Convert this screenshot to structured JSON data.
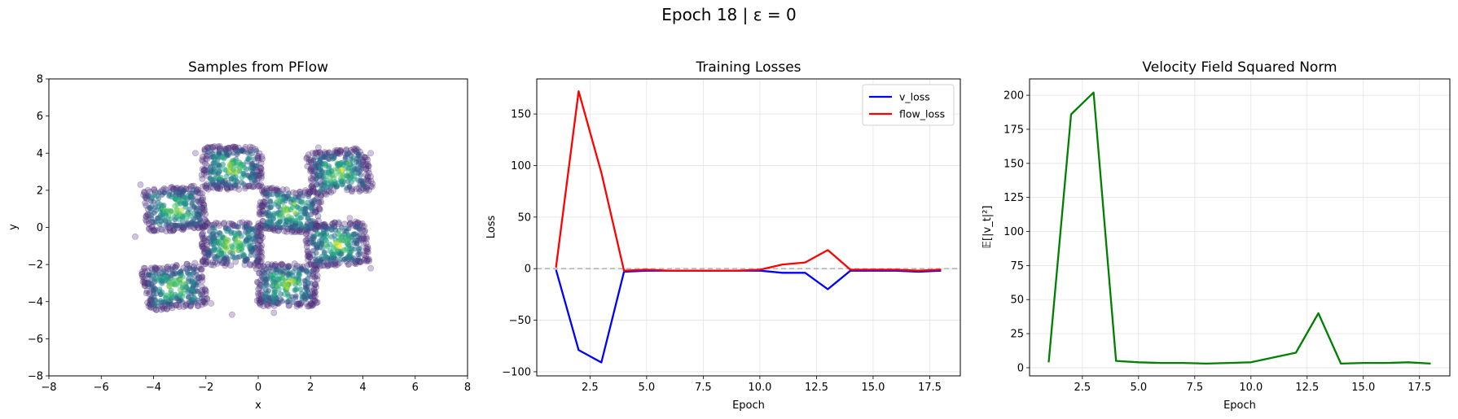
{
  "suptitle": "Epoch 18 | ε = 0",
  "chart_data": [
    {
      "type": "scatter",
      "title": "Samples from PFlow",
      "xlabel": "x",
      "ylabel": "y",
      "xlim": [
        -8,
        8
      ],
      "ylim": [
        -8,
        8
      ],
      "xticks": [
        -8,
        -6,
        -4,
        -2,
        0,
        2,
        4,
        6,
        8
      ],
      "yticks": [
        -8,
        -6,
        -4,
        -2,
        0,
        2,
        4,
        6,
        8
      ],
      "grid": false,
      "colormap": "viridis",
      "clusters": [
        {
          "center": [
            -3.2,
            1.0
          ],
          "half_width": [
            1.0,
            1.0
          ],
          "rotation_deg": 8
        },
        {
          "center": [
            -1.0,
            3.2
          ],
          "half_width": [
            1.0,
            1.0
          ],
          "rotation_deg": 0
        },
        {
          "center": [
            1.2,
            0.9
          ],
          "half_width": [
            1.0,
            1.0
          ],
          "rotation_deg": -5
        },
        {
          "center": [
            3.1,
            3.0
          ],
          "half_width": [
            1.0,
            1.0
          ],
          "rotation_deg": 8
        },
        {
          "center": [
            -1.0,
            -0.9
          ],
          "half_width": [
            1.0,
            1.0
          ],
          "rotation_deg": 0
        },
        {
          "center": [
            3.0,
            -0.9
          ],
          "half_width": [
            1.0,
            1.0
          ],
          "rotation_deg": 5
        },
        {
          "center": [
            -3.2,
            -3.2
          ],
          "half_width": [
            1.0,
            1.0
          ],
          "rotation_deg": 8
        },
        {
          "center": [
            1.1,
            -3.1
          ],
          "half_width": [
            1.0,
            1.0
          ],
          "rotation_deg": 0
        }
      ],
      "outliers": [
        [
          -4.7,
          -0.5
        ],
        [
          -1.8,
          -4.1
        ],
        [
          -1.0,
          -4.7
        ],
        [
          0.6,
          -4.6
        ],
        [
          3.5,
          0.5
        ],
        [
          4.3,
          -2.2
        ],
        [
          -4.5,
          2.3
        ],
        [
          2.3,
          4.3
        ],
        [
          -2.4,
          4.0
        ],
        [
          4.3,
          4.0
        ]
      ]
    },
    {
      "type": "line",
      "title": "Training Losses",
      "xlabel": "Epoch",
      "ylabel": "Loss",
      "xlim": [
        0.15,
        18.85
      ],
      "ylim": [
        -104,
        184
      ],
      "xticks": [
        2.5,
        5.0,
        7.5,
        10.0,
        12.5,
        15.0,
        17.5
      ],
      "yticks": [
        -100,
        -50,
        0,
        50,
        100,
        150
      ],
      "grid": true,
      "hline": 0,
      "legend_position": "top-right",
      "x": [
        1,
        2,
        3,
        4,
        5,
        6,
        7,
        8,
        9,
        10,
        11,
        12,
        13,
        14,
        15,
        16,
        17,
        18
      ],
      "series": [
        {
          "name": "v_loss",
          "color": "#0000ff",
          "values": [
            -1,
            -79,
            -91,
            -3,
            -2,
            -2,
            -2,
            -2,
            -2,
            -2,
            -4,
            -4,
            -20,
            -2,
            -2,
            -2,
            -3,
            -2
          ]
        },
        {
          "name": "flow_loss",
          "color": "#ff0000",
          "values": [
            1,
            172,
            93,
            -2,
            -1,
            -2,
            -2,
            -2,
            -2,
            -1,
            4,
            6,
            18,
            -1,
            -1,
            -1,
            -2,
            -1
          ]
        }
      ]
    },
    {
      "type": "line",
      "title": "Velocity Field Squared Norm",
      "xlabel": "Epoch",
      "ylabel": "𝔼[|v_t|²]",
      "xlim": [
        0.15,
        18.85
      ],
      "ylim": [
        -6,
        212
      ],
      "xticks": [
        2.5,
        5.0,
        7.5,
        10.0,
        12.5,
        15.0,
        17.5
      ],
      "yticks": [
        0,
        25,
        50,
        75,
        100,
        125,
        150,
        175,
        200
      ],
      "grid": true,
      "x": [
        1,
        2,
        3,
        4,
        5,
        6,
        7,
        8,
        9,
        10,
        11,
        12,
        13,
        14,
        15,
        16,
        17,
        18
      ],
      "series": [
        {
          "color": "#008000",
          "values": [
            4,
            186,
            202,
            5,
            4,
            3.5,
            3.5,
            3,
            3.5,
            4,
            7.5,
            11,
            40,
            3,
            3.5,
            3.5,
            4,
            3
          ]
        }
      ]
    }
  ]
}
